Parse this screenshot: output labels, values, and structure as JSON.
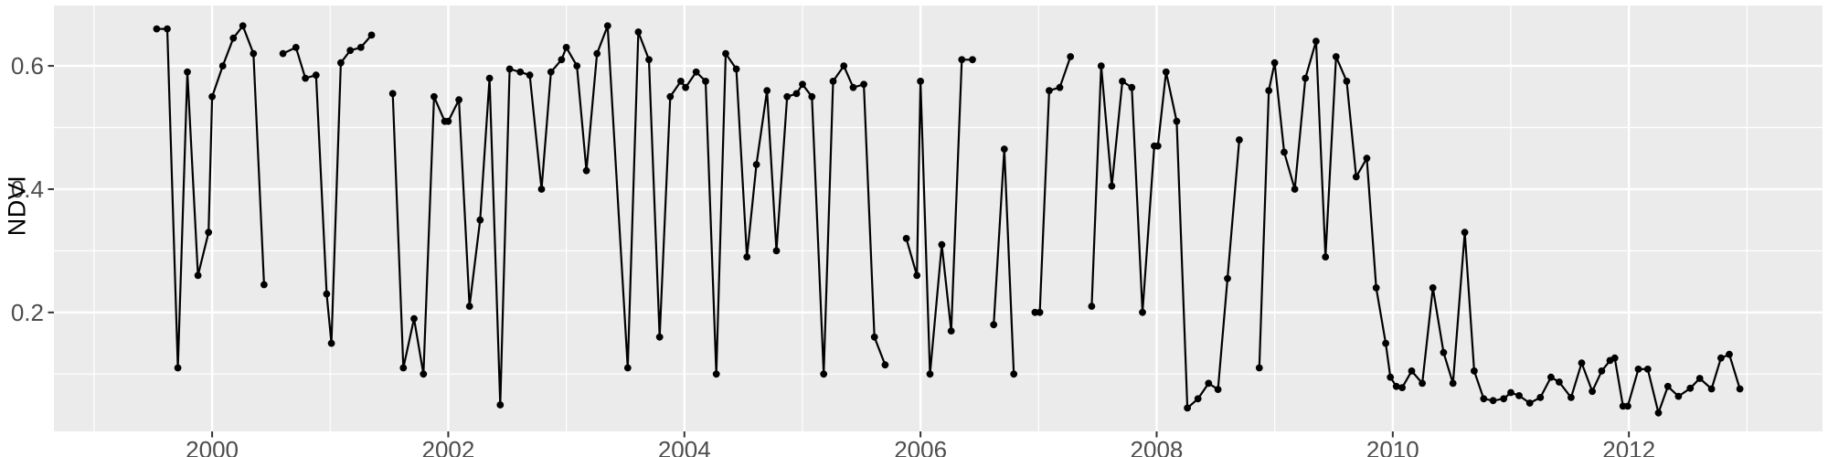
{
  "figure": {
    "kind": "ggplot2-style time series plot",
    "title": "",
    "legend": "none",
    "outer_background": "#ffffff"
  },
  "chart_data": {
    "type": "line",
    "title": "",
    "xlabel": "",
    "ylabel": "NDVI",
    "grid": "major and minor, white on gray panel",
    "legend_position": "none",
    "x_axis": {
      "domain": [
        1998.66,
        2013.64
      ],
      "ticks": [
        2000,
        2002,
        2004,
        2006,
        2008,
        2010,
        2012
      ],
      "tick_labels": [
        "2000",
        "2002",
        "2004",
        "2006",
        "2008",
        "2010",
        "2012"
      ],
      "minor_ticks": [
        1999,
        2001,
        2003,
        2005,
        2007,
        2009,
        2011,
        2013
      ]
    },
    "y_axis": {
      "domain": [
        0.007,
        0.698
      ],
      "ticks": [
        0.2,
        0.4,
        0.6
      ],
      "tick_labels": [
        "0.2",
        "0.4",
        "0.6"
      ],
      "minor_ticks": [
        0.1,
        0.3,
        0.5
      ]
    },
    "style": {
      "panel_bg": "#ebebeb",
      "grid_color": "#ffffff",
      "line_color": "#000000",
      "point_color": "#000000",
      "tick_text_color": "#4d4d4d",
      "tick_mark_color": "#333333",
      "axis_title_color": "#000000",
      "point_radius": 3.9,
      "line_width": 2.2
    },
    "series": [
      {
        "name": "NDVI",
        "segments": [
          [
            [
              1999.53,
              0.66
            ],
            [
              1999.62,
              0.66
            ],
            [
              1999.71,
              0.11
            ],
            [
              1999.79,
              0.59
            ],
            [
              1999.88,
              0.26
            ],
            [
              1999.97,
              0.33
            ],
            [
              2000.0,
              0.55
            ],
            [
              2000.09,
              0.6
            ],
            [
              2000.18,
              0.645
            ],
            [
              2000.26,
              0.665
            ],
            [
              2000.35,
              0.62
            ],
            [
              2000.44,
              0.245
            ]
          ],
          [
            [
              2000.6,
              0.62
            ],
            [
              2000.71,
              0.63
            ],
            [
              2000.79,
              0.58
            ],
            [
              2000.88,
              0.585
            ],
            [
              2000.97,
              0.23
            ],
            [
              2001.01,
              0.15
            ],
            [
              2001.09,
              0.605
            ],
            [
              2001.17,
              0.625
            ],
            [
              2001.26,
              0.63
            ],
            [
              2001.35,
              0.65
            ]
          ],
          [
            [
              2001.53,
              0.555
            ],
            [
              2001.62,
              0.11
            ],
            [
              2001.71,
              0.19
            ],
            [
              2001.79,
              0.1
            ],
            [
              2001.88,
              0.55
            ],
            [
              2001.97,
              0.51
            ],
            [
              2002.0,
              0.51
            ],
            [
              2002.09,
              0.545
            ],
            [
              2002.18,
              0.21
            ],
            [
              2002.27,
              0.35
            ],
            [
              2002.35,
              0.58
            ],
            [
              2002.44,
              0.05
            ],
            [
              2002.52,
              0.595
            ],
            [
              2002.61,
              0.59
            ],
            [
              2002.69,
              0.585
            ],
            [
              2002.79,
              0.4
            ],
            [
              2002.87,
              0.59
            ],
            [
              2002.96,
              0.61
            ],
            [
              2003.0,
              0.63
            ],
            [
              2003.09,
              0.6
            ],
            [
              2003.17,
              0.43
            ],
            [
              2003.26,
              0.62
            ],
            [
              2003.35,
              0.665
            ],
            [
              2003.52,
              0.11
            ],
            [
              2003.61,
              0.655
            ],
            [
              2003.7,
              0.61
            ],
            [
              2003.79,
              0.16
            ],
            [
              2003.88,
              0.55
            ],
            [
              2003.97,
              0.575
            ],
            [
              2004.01,
              0.565
            ],
            [
              2004.1,
              0.59
            ],
            [
              2004.18,
              0.575
            ],
            [
              2004.27,
              0.1
            ],
            [
              2004.35,
              0.62
            ],
            [
              2004.44,
              0.595
            ],
            [
              2004.53,
              0.29
            ],
            [
              2004.61,
              0.44
            ],
            [
              2004.7,
              0.56
            ],
            [
              2004.78,
              0.3
            ],
            [
              2004.87,
              0.55
            ],
            [
              2004.95,
              0.555
            ],
            [
              2005.0,
              0.57
            ],
            [
              2005.08,
              0.55
            ],
            [
              2005.18,
              0.1
            ],
            [
              2005.26,
              0.575
            ],
            [
              2005.35,
              0.6
            ],
            [
              2005.43,
              0.565
            ],
            [
              2005.52,
              0.57
            ],
            [
              2005.61,
              0.16
            ],
            [
              2005.7,
              0.115
            ]
          ],
          [
            [
              2005.88,
              0.32
            ],
            [
              2005.97,
              0.26
            ],
            [
              2006.0,
              0.575
            ],
            [
              2006.08,
              0.1
            ],
            [
              2006.18,
              0.31
            ],
            [
              2006.26,
              0.17
            ],
            [
              2006.35,
              0.61
            ],
            [
              2006.44,
              0.61
            ]
          ],
          [
            [
              2006.62,
              0.18
            ],
            [
              2006.71,
              0.465
            ],
            [
              2006.79,
              0.1
            ]
          ],
          [
            [
              2006.97,
              0.2
            ],
            [
              2007.01,
              0.2
            ],
            [
              2007.09,
              0.56
            ],
            [
              2007.18,
              0.565
            ],
            [
              2007.27,
              0.615
            ]
          ],
          [
            [
              2007.45,
              0.21
            ],
            [
              2007.53,
              0.6
            ],
            [
              2007.62,
              0.405
            ],
            [
              2007.71,
              0.575
            ],
            [
              2007.79,
              0.565
            ],
            [
              2007.88,
              0.2
            ],
            [
              2007.98,
              0.47
            ],
            [
              2008.01,
              0.47
            ],
            [
              2008.08,
              0.59
            ],
            [
              2008.17,
              0.51
            ],
            [
              2008.26,
              0.045
            ],
            [
              2008.35,
              0.06
            ],
            [
              2008.44,
              0.085
            ],
            [
              2008.52,
              0.075
            ],
            [
              2008.6,
              0.255
            ],
            [
              2008.7,
              0.48
            ]
          ],
          [
            [
              2008.87,
              0.11
            ],
            [
              2008.95,
              0.56
            ],
            [
              2009.0,
              0.605
            ],
            [
              2009.08,
              0.46
            ],
            [
              2009.17,
              0.4
            ],
            [
              2009.26,
              0.58
            ],
            [
              2009.35,
              0.64
            ],
            [
              2009.43,
              0.29
            ],
            [
              2009.52,
              0.615
            ],
            [
              2009.61,
              0.575
            ],
            [
              2009.69,
              0.42
            ],
            [
              2009.78,
              0.45
            ],
            [
              2009.86,
              0.24
            ],
            [
              2009.94,
              0.15
            ],
            [
              2009.98,
              0.095
            ],
            [
              2010.03,
              0.08
            ],
            [
              2010.08,
              0.078
            ],
            [
              2010.16,
              0.105
            ],
            [
              2010.25,
              0.085
            ],
            [
              2010.34,
              0.24
            ],
            [
              2010.43,
              0.135
            ],
            [
              2010.51,
              0.085
            ],
            [
              2010.61,
              0.33
            ],
            [
              2010.69,
              0.105
            ],
            [
              2010.77,
              0.06
            ],
            [
              2010.85,
              0.057
            ],
            [
              2010.94,
              0.06
            ],
            [
              2011.0,
              0.07
            ],
            [
              2011.07,
              0.065
            ],
            [
              2011.16,
              0.053
            ],
            [
              2011.25,
              0.062
            ],
            [
              2011.34,
              0.095
            ],
            [
              2011.41,
              0.087
            ],
            [
              2011.51,
              0.062
            ],
            [
              2011.6,
              0.118
            ],
            [
              2011.69,
              0.072
            ],
            [
              2011.77,
              0.105
            ],
            [
              2011.84,
              0.122
            ],
            [
              2011.88,
              0.126
            ],
            [
              2011.95,
              0.048
            ],
            [
              2011.99,
              0.048
            ],
            [
              2012.08,
              0.108
            ],
            [
              2012.16,
              0.108
            ],
            [
              2012.25,
              0.037
            ],
            [
              2012.33,
              0.08
            ],
            [
              2012.42,
              0.064
            ],
            [
              2012.52,
              0.077
            ],
            [
              2012.6,
              0.093
            ],
            [
              2012.7,
              0.076
            ],
            [
              2012.78,
              0.126
            ],
            [
              2012.85,
              0.132
            ],
            [
              2012.94,
              0.076
            ]
          ]
        ]
      }
    ]
  }
}
